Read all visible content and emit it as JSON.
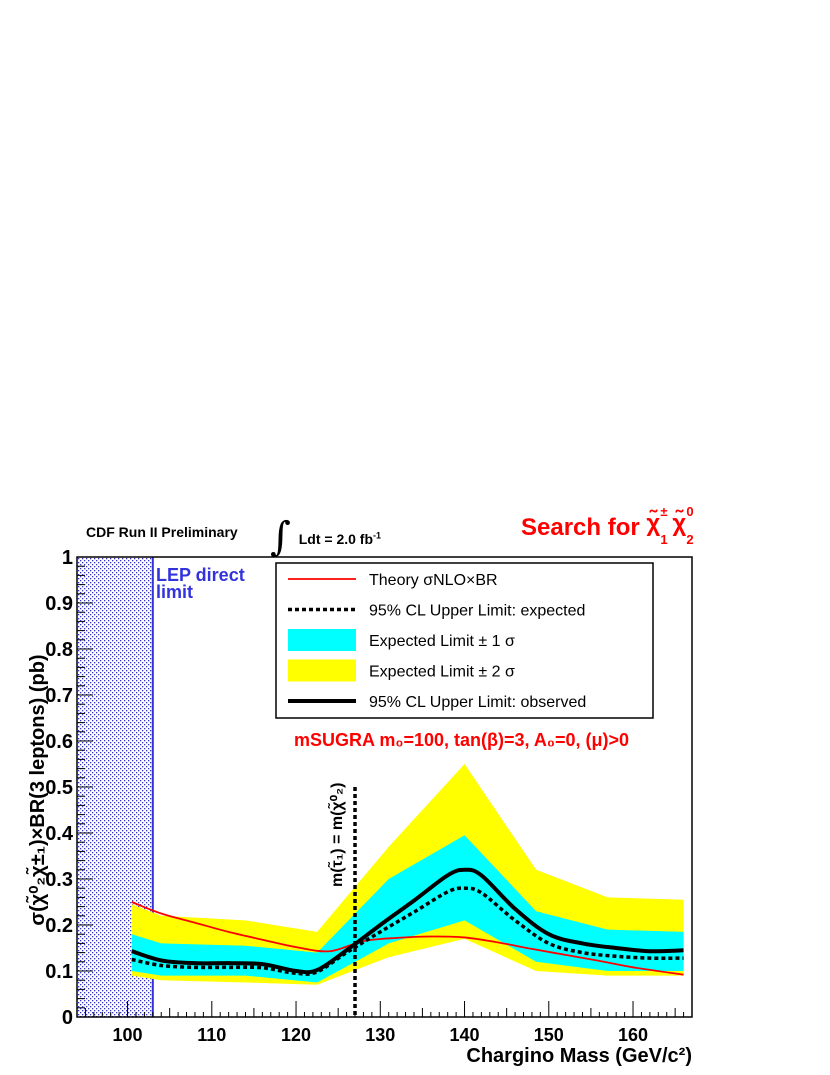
{
  "header": {
    "experiment_label": "CDF Run II Preliminary",
    "lumi_text": "Ldt = 2.0 fb",
    "lumi_sup": "-1",
    "search_prefix": "Search for"
  },
  "chart_data": {
    "type": "line",
    "title": "",
    "xlabel": "Chargino Mass (GeV/c²)",
    "ylabel": "σ(χ̃⁰₂χ̃±₁)×BR(3 leptons) (pb)",
    "xlim": [
      94,
      167
    ],
    "ylim": [
      0,
      1
    ],
    "x_ticks": [
      100,
      110,
      120,
      130,
      140,
      150,
      160
    ],
    "y_ticks": [
      0,
      0.1,
      0.2,
      0.3,
      0.4,
      0.5,
      0.6,
      0.7,
      0.8,
      0.9,
      1
    ],
    "x_tick_labels": [
      "100",
      "110",
      "120",
      "130",
      "140",
      "150",
      "160"
    ],
    "y_tick_labels": [
      "0",
      "0.1",
      "0.2",
      "0.3",
      "0.4",
      "0.5",
      "0.6",
      "0.7",
      "0.8",
      "0.9",
      "1"
    ],
    "grid": false,
    "legend_position": "top-right",
    "series": [
      {
        "name": "Theory σNLO×BR",
        "color": "#ff0000",
        "style": "solid-thin",
        "x": [
          100.5,
          104,
          108,
          112,
          116,
          120,
          124,
          128,
          132,
          136,
          140,
          144,
          148,
          152,
          156,
          160,
          166
        ],
        "y": [
          0.25,
          0.225,
          0.205,
          0.185,
          0.168,
          0.152,
          0.143,
          0.165,
          0.172,
          0.175,
          0.173,
          0.162,
          0.148,
          0.135,
          0.122,
          0.108,
          0.092
        ]
      },
      {
        "name": "95% CL Upper Limit: expected",
        "color": "#000000",
        "style": "dashed",
        "x": [
          100.5,
          104,
          108,
          112,
          116,
          120,
          122.5,
          126,
          130,
          134,
          138,
          140,
          142,
          146,
          150,
          154,
          158,
          162,
          166
        ],
        "y": [
          0.125,
          0.112,
          0.108,
          0.108,
          0.107,
          0.095,
          0.098,
          0.14,
          0.185,
          0.228,
          0.272,
          0.28,
          0.27,
          0.21,
          0.16,
          0.14,
          0.132,
          0.128,
          0.128
        ]
      },
      {
        "name": "95% CL Upper Limit: observed",
        "color": "#000000",
        "style": "solid-thick",
        "x": [
          100.5,
          104,
          108,
          112,
          116,
          120,
          122.5,
          126,
          130,
          134,
          138,
          140,
          142,
          146,
          150,
          154,
          158,
          162,
          166
        ],
        "y": [
          0.143,
          0.123,
          0.117,
          0.117,
          0.115,
          0.1,
          0.102,
          0.145,
          0.2,
          0.253,
          0.308,
          0.32,
          0.308,
          0.235,
          0.18,
          0.16,
          0.15,
          0.143,
          0.145
        ]
      }
    ],
    "bands": [
      {
        "name": "Expected Limit ± 2 σ",
        "color": "#ffff00",
        "x": [
          100.5,
          104,
          114,
          122.5,
          131,
          140,
          148.5,
          157,
          166
        ],
        "upper": [
          0.245,
          0.22,
          0.21,
          0.185,
          0.37,
          0.55,
          0.32,
          0.26,
          0.255
        ],
        "lower": [
          0.09,
          0.08,
          0.075,
          0.07,
          0.13,
          0.17,
          0.1,
          0.09,
          0.09
        ]
      },
      {
        "name": "Expected Limit ± 1 σ",
        "color": "#00ffff",
        "x": [
          100.5,
          104,
          114,
          122.5,
          131,
          140,
          148.5,
          157,
          166
        ],
        "upper": [
          0.18,
          0.16,
          0.155,
          0.14,
          0.3,
          0.395,
          0.23,
          0.19,
          0.185
        ],
        "lower": [
          0.1,
          0.09,
          0.09,
          0.075,
          0.16,
          0.21,
          0.12,
          0.1,
          0.1
        ]
      }
    ],
    "excluded_region": {
      "label_line1": "LEP direct",
      "label_line2": "limit",
      "x_min": 94,
      "x_max": 103,
      "color": "#3333dd"
    },
    "vertical_marker": {
      "x": 127,
      "y_max": 0.5,
      "label": "m(τ̃₁) = m(χ̃⁰₂)"
    },
    "annotation": "mSUGRA m₀=100, tan(β)=3, A₀=0, (μ)>0"
  }
}
